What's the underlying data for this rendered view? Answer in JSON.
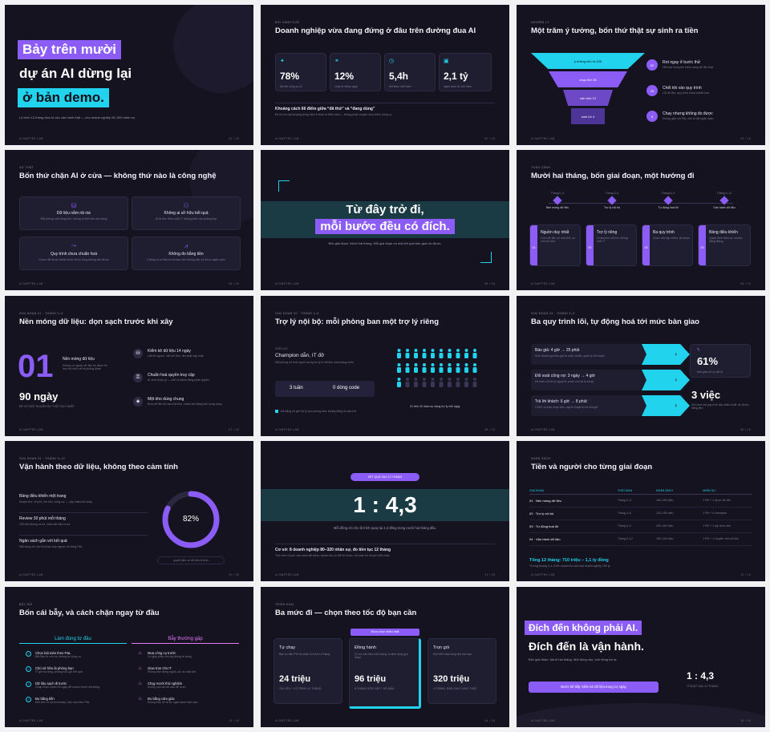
{
  "footer_brand": "AI NAPTEK LAB",
  "s1": {
    "line1": "Bảy trên mười",
    "line2": "dự án AI dừng lại",
    "line3": "ở bản demo.",
    "sub": "Lộ trình 12 tháng đưa AI vào vận hành thật — cho doanh nghiệp 50–500 nhân sự",
    "page": "01 / 15"
  },
  "s2": {
    "eyebrow": "BỐI CẢNH GIỚI",
    "title": "Doanh nghiệp vừa đang đứng ở đâu trên đường đua AI",
    "stats": [
      {
        "icon": "sparkle-icon",
        "value": "78%",
        "label": "đã thử công cụ AI"
      },
      {
        "icon": "link-icon",
        "value": "12%",
        "label": "chạy AI hằng ngày"
      },
      {
        "icon": "clock-icon",
        "value": "5,4h",
        "label": "tiết kiệm mỗi tuần"
      },
      {
        "icon": "wallet-icon",
        "value": "2,1 tỷ",
        "label": "ngân sách AI mỗi năm"
      }
    ],
    "gap_title": "Khoảng cách 66 điểm giữa “đã thử” và “đang dùng”",
    "gap_sub": "Đó là nơi các khoảng trống nằm ở trình tự triển khai — không phải chuyện mua thêm công cụ.",
    "page": "02 / 15"
  },
  "s3": {
    "eyebrow": "NGHIỆM LÝ",
    "title": "Một trăm ý tưởng, bốn thứ thật sự sinh ra tiền",
    "funnel": [
      "ý tưởng nêu ra 100",
      "chạy thử 38",
      "vận việc 12",
      "sinh lời 4"
    ],
    "items": [
      {
        "num": "62",
        "title": "Rơi ngay ở bước thử",
        "sub": "Hết hào hứng khi bước sang dữ liệu thật"
      },
      {
        "num": "26",
        "title": "Chết khi vào quy trình",
        "sub": "Lỗi dữ liệu, quy trình chưa chuẩn hoá"
      },
      {
        "num": "8",
        "title": "Chạy nhưng không đo được",
        "sub": "Không gắn với P&L nên bị cắt ngân sách"
      }
    ],
    "page": "03 / 15"
  },
  "s4": {
    "eyebrow": "SỰ THẬT",
    "title": "Bốn thứ chặn AI ở cửa — không thứ nào là công nghệ",
    "cards": [
      {
        "icon": "database-icon",
        "title": "Dữ liệu nằm rải rác",
        "sub": "Mỗi phòng một bảng tính, không ai biết bản nào đúng"
      },
      {
        "icon": "user-icon",
        "title": "Không ai sở hữu kết quả",
        "sub": "AI là việc thêm của IT, không phải của phòng ban"
      },
      {
        "icon": "flow-icon",
        "title": "Quy trình chưa chuẩn hoá",
        "sub": "Chưa viết được thành bước thì AI cũng không làm được"
      },
      {
        "icon": "chart-icon",
        "title": "Không đo bằng tiền",
        "sub": "Không có số liệu trước/sau nên không bảo vệ được ngân sách"
      }
    ],
    "page": "04 / 15"
  },
  "s5": {
    "line1": "Từ đây trở đi,",
    "line2": "mỗi bước đều có đích.",
    "sub": "Bốn giai đoạn. Mười hai tháng. Mỗi giai đoạn có một kết quả bàn giao đo được.",
    "page": "05 / 15"
  },
  "s6": {
    "eyebrow": "TOÀN CẢNH",
    "title": "Mười hai tháng, bốn giai đoạn, một hướng đi",
    "phases": [
      {
        "months": "Tháng 0–3",
        "name": "Nền móng dữ liệu",
        "num": "01",
        "card_title": "Nguồn duy nhất",
        "card_sub": "Gom dữ liệu về một chỗ, có chủ sở hữu"
      },
      {
        "months": "Tháng 3–6",
        "name": "Trợ lý nội bộ",
        "num": "02",
        "card_title": "Trợ lý riêng",
        "card_sub": "Champion mỗi bộ, không nhờ IT"
      },
      {
        "months": "Tháng 6–9",
        "name": "Tự động hoá lõi",
        "num": "03",
        "card_title": "Ba quy trình",
        "card_sub": "Chọn việc lặp nhiều, đo được"
      },
      {
        "months": "Tháng 9–12",
        "name": "Vận hành dữ liệu",
        "num": "04",
        "card_title": "Bảng điều khiển",
        "card_sub": "Quyết định theo số, review hằng tháng"
      }
    ],
    "page": "06 / 15"
  },
  "s7": {
    "eyebrow": "GIAI ĐOẠN 01 · THÁNG 0–3",
    "title": "Nền móng dữ liệu: dọn sạch trước khi xây",
    "big_num": "01",
    "phase_name": "Nền móng dữ liệu",
    "phase_sub": "Không có nguồn dữ liệu tin được thì mọi mô hình chỉ là phỏng đoán",
    "days": "90 ngày",
    "days_sub": "ĐỂ CÓ MỘT NGUỒN SỰ THẬT DUY NHẤT",
    "items": [
      {
        "icon": "database-icon",
        "title": "Kiểm kê dữ liệu 14 ngày",
        "sub": "Liệt kê nguồn, chủ sở hữu, tần suất cập nhật"
      },
      {
        "icon": "lock-icon",
        "title": "Chuẩn hoá quyền truy cập",
        "sub": "Ai xem được gì — viết ra thành bảng phân quyền"
      },
      {
        "icon": "layers-icon",
        "title": "Một kho dùng chung",
        "sub": "Đưa dữ liệu lõi vào một kho, chấm dứt bảng tính song song"
      }
    ],
    "page": "07 / 15"
  },
  "s8": {
    "eyebrow": "GIAI ĐOẠN 02 · THÁNG 3–6",
    "title": "Trợ lý nội bộ: mỗi phòng ban một trợ lý riêng",
    "sub_eyebrow": "CHỦ LỰC",
    "champion": "Champion dẫn, IT đỡ",
    "champion_sub": "Mỗi phòng cử một người dựng trợ lý từ tài liệu của phòng mình",
    "weeks": "3 tuần",
    "code": "0 dòng code",
    "legend": "Đã bằng số giờ trợ lý cho phòng ban, không bằng số câu hỏi",
    "people_caption": "21 trên 30 nhân sự dùng trợ lý mỗi ngày",
    "people_total": 30,
    "people_active": 21,
    "page": "08 / 15"
  },
  "s9": {
    "eyebrow": "GIAI ĐOẠN 03 · THÁNG 6–9",
    "title": "Ba quy trình lõi, tự động hoá tới mức bàn giao",
    "rows": [
      {
        "title": "Báo giá: 4 giờ → 25 phút",
        "sub": "Kinh doanh gọi báo giá từ mẫu chuẩn, quản lý chỉ duyệt"
      },
      {
        "title": "Đối soát công nợ: 3 ngày → 4 giờ",
        "sub": "Kế toán chỉ xử lý ngoại lệ, phần còn lại tự khớp"
      },
      {
        "title": "Trả lời khách: 6 giờ → 8 phút",
        "sub": "CSKH có bản nháp sẵn, người duyệt trước khi gửi"
      }
    ],
    "pct": "61%",
    "pct_sub": "thời gian xử lý cắt đi",
    "jobs": "3 việc",
    "jobs_sub": "Chỉ chọn ba quy trình lặp nhiều nhất, đo được bằng tiền",
    "page": "09 / 15"
  },
  "s10": {
    "eyebrow": "GIAI ĐOẠN 04 · THÁNG 9–12",
    "title": "Vận hành theo dữ liệu, không theo cảm tính",
    "items": [
      {
        "title": "Bảng điều khiển một trang",
        "sub": "Doanh thu, chi phí, tồn kho, công nợ — cập nhật mỗi sáng"
      },
      {
        "title": "Review 30 phút mỗi tháng",
        "sub": "Cắt việc không ra số, nhân đôi việc ra số"
      },
      {
        "title": "Ngân sách gắn với kết quả",
        "sub": "Mỗi đồng chi cho AI được truy ngược về dòng P&L"
      }
    ],
    "gauge_value": 82,
    "gauge_label": "82%",
    "gauge_caption": "quyết định có dữ liệu đi kèm",
    "page": "10 / 15"
  },
  "s11": {
    "pill": "KẾT QUẢ SAU 12 THÁNG",
    "ratio": "1 : 4,3",
    "caption": "Mỗi đồng chi cho lộ trình quay lại 4,3 đồng trong mười hai tháng đầu.",
    "basis": "Cơ sở: 8 doanh nghiệp 80–320 nhân sự, đo tiền tục 12 tháng",
    "basis_sub": "Tính trên chi phí vận hành tiết kiệm, doanh thu có thể đo được, trừ toàn bộ chi phí triển khai",
    "page": "11 / 15"
  },
  "s12": {
    "eyebrow": "NGÂN SÁCH",
    "title": "Tiền và người cho từng giai đoạn",
    "headers": [
      "GIAI ĐOẠN",
      "THỜI GIAN",
      "NGÂN SÁCH",
      "NHÂN SỰ"
    ],
    "rows": [
      [
        "01 · Nền móng dữ liệu",
        "Tháng 0–3",
        "180–260 triệu",
        "1 PM + 1 kỹ sư dữ liệu"
      ],
      [
        "02 · Trợ lý nội bộ",
        "Tháng 3–6",
        "120–180 triệu",
        "1 PM + 4 champion"
      ],
      [
        "03 · Tự động hoá lõi",
        "Tháng 6–9",
        "260–420 triệu",
        "1 PM + 1 lập trình viên"
      ],
      [
        "04 · Vận hành dữ liệu",
        "Tháng 9–12",
        "150–240 triệu",
        "1 PM + 1 chuyên viên số liệu"
      ]
    ],
    "total": "Tổng 12 tháng: 710 triệu – 1,1 tỷ đồng",
    "total_sub": "Tương đương 0,4–0,6% doanh thu của một doanh nghiệp 200 tỷ",
    "page": "12 / 15"
  },
  "s13": {
    "eyebrow": "BẪY RỦI",
    "title": "Bốn cái bẫy, và cách chặn ngay từ đầu",
    "left_head": "Làm đúng từ đầu",
    "right_head": "Bẫy thường gặp",
    "left": [
      {
        "title": "Chọn bài toán theo P&L",
        "sub": "Bắt đầu từ con số, không từ công cụ"
      },
      {
        "title": "Chủ sở hữu là phòng ban",
        "sub": "IT giữ hạ tầng, phòng ban giữ kết quả"
      },
      {
        "title": "Dữ liệu sạch đi trước",
        "sub": "Chấp nhận chậm 90 ngày để nhanh mười hai tháng"
      },
      {
        "title": "Đo bằng tiền",
        "sub": "Mỗi việc có số trước/sau, báo cáo theo P&L"
      }
    ],
    "right": [
      {
        "title": "Mua công cụ trước",
        "sub": "Có giấy phép nhưng không ai dùng"
      },
      {
        "title": "Giao trọn cho IT",
        "sub": "Phòng ban đứng ngoài, dự án mất chủ"
      },
      {
        "title": "Chạy mười thử nghiệm",
        "sub": "Không cái nào đủ sâu để ra số"
      },
      {
        "title": "Đo bằng cảm giác",
        "sub": "Không bảo vệ được ngân sách năm sau"
      }
    ],
    "page": "13 / 15"
  },
  "s14": {
    "eyebrow": "TRIỂN KHAI",
    "title": "Ba mức đi — chọn theo tốc độ bạn cần",
    "badge": "Được chọn nhiều nhất",
    "tiers": [
      {
        "name": "Tự chạy",
        "sub": "Bạn tự dẫn PM và nhận lộ trình 12 tháng",
        "price": "24 triệu",
        "note": "TÀI LIỆU + LỘ TRÌNH 12 THÁNG"
      },
      {
        "name": "Đồng hành",
        "sub": "Có cố vấn theo mỗi tháng, review từng giai đoạn",
        "price": "96 triệu",
        "note": "6 THÁNG KÈM CẶP + SỐ MẪU"
      },
      {
        "name": "Trọn gói",
        "sub": "Đội triển khai cùng đội của bạn",
        "price": "320 triệu",
        "note": "4 THÁNG, BÀN GIAO CHẠY THẬT"
      }
    ],
    "page": "14 / 15"
  },
  "s15": {
    "line1": "Đích đến không phải AI.",
    "line2": "Đích đến là vận hành.",
    "sub": "Bốn giai đoạn. Mười hai tháng. Một đồng vào, bốn đồng ba ra.",
    "cta": "Bước kế tiếp: kiểm kê dữ liệu trong 14 ngày",
    "ratio": "1 : 4,3",
    "ratio_sub": "TỈ SUẤT SAU 12 THÁNG",
    "page": "15 / 15"
  },
  "colors": {
    "bg": "#14131f",
    "purple": "#8b5cf6",
    "cyan": "#22d3ee",
    "card": "#1f1d30"
  }
}
